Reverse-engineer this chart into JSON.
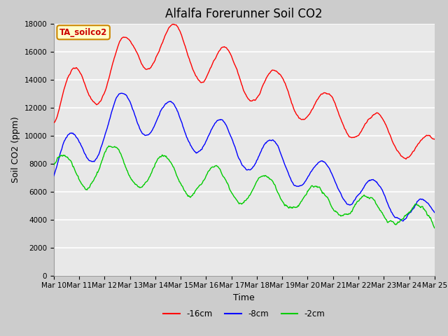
{
  "title": "Alfalfa Forerunner Soil CO2",
  "xlabel": "Time",
  "ylabel": "Soil CO2 (ppm)",
  "ylim": [
    0,
    18000
  ],
  "yticks": [
    0,
    2000,
    4000,
    6000,
    8000,
    10000,
    12000,
    14000,
    16000,
    18000
  ],
  "x_labels": [
    "Mar 10",
    "Mar 11",
    "Mar 12",
    "Mar 13",
    "Mar 14",
    "Mar 15",
    "Mar 16",
    "Mar 17",
    "Mar 18",
    "Mar 19",
    "Mar 20",
    "Mar 21",
    "Mar 22",
    "Mar 23",
    "Mar 24",
    "Mar 25"
  ],
  "annotation_text": "TA_soilco2",
  "annotation_box_color": "#ffffcc",
  "annotation_box_edge": "#cc8800",
  "line_colors": [
    "#ff0000",
    "#0000ff",
    "#00cc00"
  ],
  "line_labels": [
    "-16cm",
    "-8cm",
    "-2cm"
  ],
  "background_color": "#cccccc",
  "plot_bg_color": "#e8e8e8",
  "grid_color": "#ffffff",
  "title_fontsize": 12,
  "axis_label_fontsize": 9,
  "tick_fontsize": 7.5
}
